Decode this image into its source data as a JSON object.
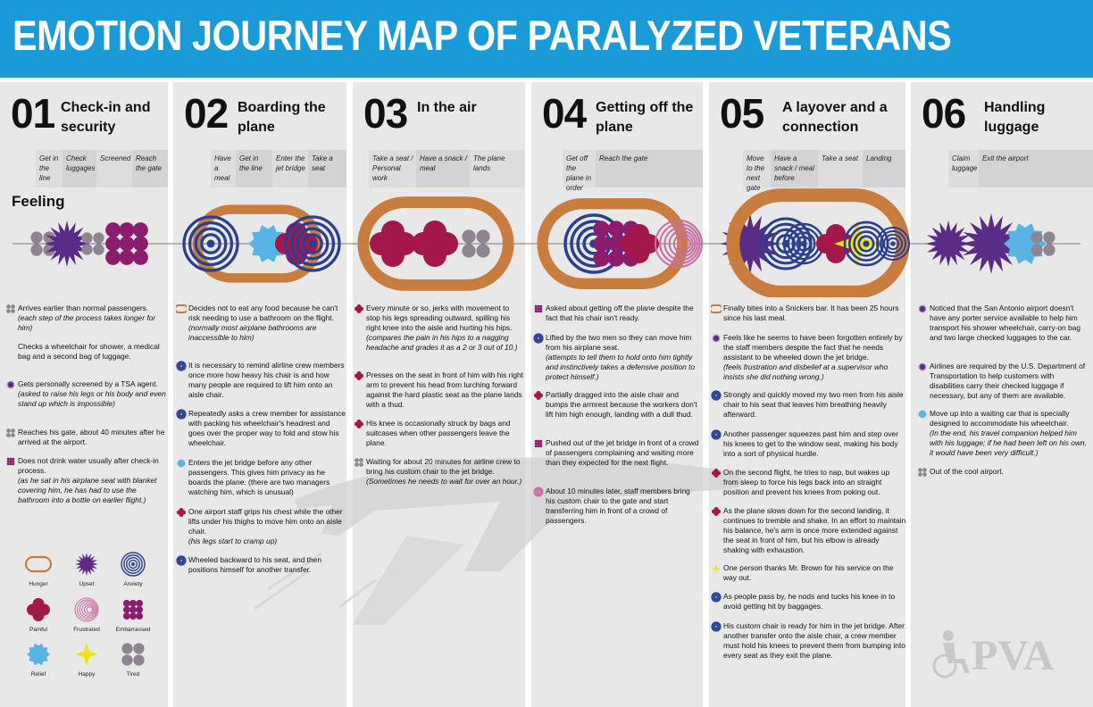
{
  "title": "EMOTION JOURNEY MAP OF PARALYZED VETERANS",
  "feeling_label": "Feeling",
  "logo_text": "PVA",
  "colors": {
    "header": "#1a9ad6",
    "hunger": "#c87d3e",
    "upset": "#5a2c86",
    "anxiety": "#2b3f8f",
    "painful": "#a3174a",
    "frustrated": "#c96fa3",
    "embarrassed": "#8c1d6d",
    "relief": "#58b4e5",
    "happy": "#f2e316",
    "tired": "#8e8591"
  },
  "steps": [
    {
      "number": "01",
      "title": "Check-in and security",
      "substeps": [
        "Get in the line",
        "Check luggages",
        "Screened",
        "Reach the gate"
      ]
    },
    {
      "number": "02",
      "title": "Boarding the plane",
      "substeps": [
        "Have a meal",
        "Get in the line",
        "Enter the jet bridge",
        "Take a seat"
      ]
    },
    {
      "number": "03",
      "title": "In the air",
      "substeps": [
        "Take a seat / Personal work",
        "Have a snack / meal",
        "The plane lands"
      ]
    },
    {
      "number": "04",
      "title": "Getting off the plane",
      "substeps": [
        "Get off the plane in order",
        "Reach the gate"
      ]
    },
    {
      "number": "05",
      "title": "A layover and a connection",
      "substeps": [
        "Move to the next gate",
        "Have a snack / meal before",
        "Take a seat",
        "Landing"
      ]
    },
    {
      "number": "06",
      "title": "Handling luggage",
      "substeps": [
        "Claim luggage",
        "Exit the airport"
      ]
    }
  ],
  "notes": [
    [
      {
        "icon": "tired",
        "bold": "Arrives earlier than normal passengers.",
        "italic": "(each step of the process takes longer for him)"
      },
      {
        "icon": "",
        "bold": "Checks a wheelchair for shower, a medical bag and a second bag of luggage.",
        "italic": ""
      },
      {
        "icon": "upset",
        "bold": "Gets personally screened by a TSA agent.",
        "italic": "(asked to raise his legs or his body and even stand up which is impossible)"
      },
      {
        "icon": "tired",
        "bold": "Reaches his gate, about 40 minutes after he arrived at the airport.",
        "italic": ""
      },
      {
        "icon": "embarrassed",
        "bold": "Does not drink water usually after check-in process.",
        "italic": "(as he sat in his airplane seat with blanket covering him, he has had to use the bathroom into a bottle on earlier flight.)"
      }
    ],
    [
      {
        "icon": "hunger",
        "bold": "Decides not to eat any food because he can't risk needing to use a bathroom on the flight.",
        "italic": "(normally most airplane bathrooms are inaccessible to him)"
      },
      {
        "icon": "anxiety",
        "bold": "It is necessary to remind alirline crew members once more how heavy his chair is and how many people are required to lift him onto an aisle chair.",
        "italic": ""
      },
      {
        "icon": "anxiety",
        "bold": "Repeatedly asks a crew member for assistance with packing his wheelchair's headrest and goes over the proper way to fold and stow his wheelchair.",
        "italic": ""
      },
      {
        "icon": "relief",
        "bold": "Enters the jet bridge before any other passengers. This gives him privacy as he boards the plane. (there are two managers watching him, which is unusual)",
        "italic": ""
      },
      {
        "icon": "painful",
        "bold": "One airport staff grips his chest while the other lifts under his thighs to move him onto an aisle chair.",
        "italic": "(his legs start to cramp up)"
      },
      {
        "icon": "anxiety",
        "bold": "Wheeled backward to his seat, and then positions himself for another transfer.",
        "italic": ""
      }
    ],
    [
      {
        "icon": "painful",
        "bold": "Every minute or so, jerks with movement to stop his legs spreading outward, spilling his right knee into the aisle and hurting his hips.",
        "italic": "(compares the pain in his hips to a nagging headache and grades it as a 2 or 3 out of 10.)"
      },
      {
        "icon": "painful",
        "bold": "Presses on the seat in front of him with his right arm to prevent his head from lurching forward against the hard plastic seat as the plane lands with a thud.",
        "italic": ""
      },
      {
        "icon": "painful",
        "bold": "His knee is occasionally struck by bags and suitcases when other passengers leave the plane.",
        "italic": ""
      },
      {
        "icon": "tired",
        "bold": "Waiting for about 20 minutes for airline crew to bring his custom chair to the jet bridge.",
        "italic": "(Sometimes he needs to wait for over an hour.)"
      }
    ],
    [
      {
        "icon": "embarrassed",
        "bold": "Asked about getting off the plane despite the fact that his chair isn't ready.",
        "italic": ""
      },
      {
        "icon": "anxiety",
        "bold": "Lifted by the two men so they can move him from his airplane seat.",
        "italic": "(attempts to tell them to hold onto him tightly and instinctively takes a defensive position to protect himself.)"
      },
      {
        "icon": "painful",
        "bold": "Partially dragged into the aisle chair and bumps the armrest because the workers don't lift him high enough, landing with a dull thud.",
        "italic": ""
      },
      {
        "icon": "embarrassed",
        "bold": "Pushed out of the jet bridge in front of a crowd of passengers complaining and waiting more than they expected for the next flight.",
        "italic": ""
      },
      {
        "icon": "frustrated",
        "bold": "About 10 minutes later, staff members bring his custom chair to the gate and start transferring him in front of a crowd of passengers.",
        "italic": ""
      }
    ],
    [
      {
        "icon": "hunger",
        "bold": "Finally bites into a Snickers bar. It has been 25 hours since his last meal.",
        "italic": ""
      },
      {
        "icon": "upset",
        "bold": "Feels like he seems to have been forgotten entirely by the staff members despite the fact that he needs assistant to be wheeled down the jet bridge.",
        "italic": "(feels frustration and disbelief at a supervisor who insists she did nothing wrong.)"
      },
      {
        "icon": "anxiety",
        "bold": "Strongly and quickly moved my two men from his aisle chair to his seat that leaves him breathing heavily afterward.",
        "italic": ""
      },
      {
        "icon": "anxiety",
        "bold": "Another passenger squeezes past him and step over his knees to get to the window seat, making his body into a sort of physical hurdle.",
        "italic": ""
      },
      {
        "icon": "painful",
        "bold": "On the second flight, he tries to nap, but wakes up from sleep to force his legs back into an straight position and prevent his knees from poking out.",
        "italic": ""
      },
      {
        "icon": "painful",
        "bold": "As the plane slows down for the second landing, it continues to tremble and shake. In an effort to maintain his balance, he's arm is once more extended against the seat in front of him, but his elbow is already shaking with exhaustion.",
        "italic": ""
      },
      {
        "icon": "happy",
        "bold": "One person thanks Mr. Brown for his service on the way out.",
        "italic": ""
      },
      {
        "icon": "anxiety",
        "bold": "As people pass by, he nods and tucks his knee in to avoid getting hit by baggages.",
        "italic": ""
      },
      {
        "icon": "anxiety",
        "bold": "His custom chair is ready for him in the jet bridge. After another transfer onto the aisle chair, a crew member must hold his knees to prevent them from bumping into every seat as they exit the plane.",
        "italic": ""
      }
    ],
    [
      {
        "icon": "upset",
        "bold": "Noticed that the San Antonio airport doesn't have any porter service available to help him transport his shower wheelchair, carry-on bag and two large checked luggages to the car.",
        "italic": ""
      },
      {
        "icon": "upset",
        "bold": "Airlines are required by the U.S. Department of Transportation to help customers with disabilities carry their checked luggage if necessary, but any of them are available.",
        "italic": ""
      },
      {
        "icon": "relief",
        "bold": "Move up into a waiting car that is specially designed to accommodate his wheelchair.",
        "italic": "(In the end, his travel companion helped him with his luggage; if he had been left on his own, it would have been very difficult.)"
      },
      {
        "icon": "tired",
        "bold": "Out of the cool airport.",
        "italic": ""
      }
    ]
  ],
  "legend": [
    {
      "icon": "hunger",
      "label": "Hunger"
    },
    {
      "icon": "upset",
      "label": "Upset"
    },
    {
      "icon": "anxiety",
      "label": "Anxiety"
    },
    {
      "icon": "painful",
      "label": "Painful"
    },
    {
      "icon": "frustrated",
      "label": "Frustrated"
    },
    {
      "icon": "embarrassed",
      "label": "Embarrassed"
    },
    {
      "icon": "relief",
      "label": "Relief"
    },
    {
      "icon": "happy",
      "label": "Happy"
    },
    {
      "icon": "tired",
      "label": "Tired"
    }
  ]
}
